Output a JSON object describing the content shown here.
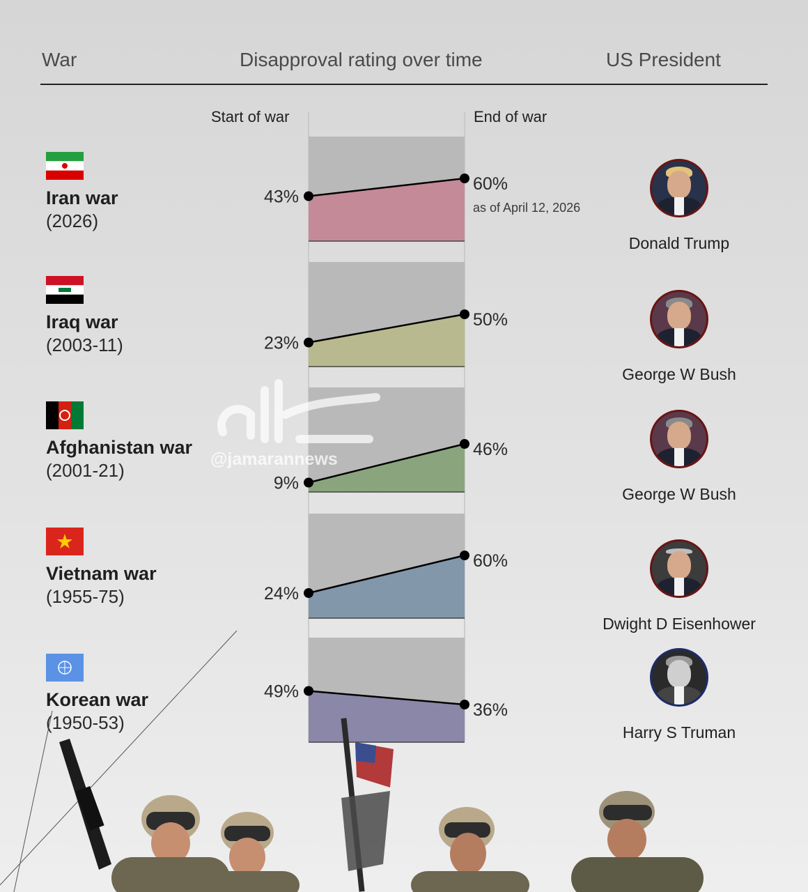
{
  "header": {
    "war": "War",
    "rating": "Disapproval rating over time",
    "president": "US President"
  },
  "subheaders": {
    "start": "Start of war",
    "end": "End of war"
  },
  "watermark": "@jamarannews",
  "colors": {
    "iran": "#c48a98",
    "iraq": "#b9b98f",
    "afghanistan": "#8aa57e",
    "vietnam": "#8397ab",
    "korean": "#8b87a8",
    "panel_bg": "#b9b9b9"
  },
  "chart_data": {
    "type": "line",
    "ylim": [
      0,
      100
    ],
    "x": [
      "Start of war",
      "End of war"
    ],
    "series": [
      {
        "name": "Iran war (2026)",
        "values": [
          43,
          60
        ],
        "start_label": "43%",
        "end_label": "60%",
        "note": "as of April 12, 2026"
      },
      {
        "name": "Iraq war (2003-11)",
        "values": [
          23,
          50
        ],
        "start_label": "23%",
        "end_label": "50%"
      },
      {
        "name": "Afghanistan war (2001-21)",
        "values": [
          9,
          46
        ],
        "start_label": "9%",
        "end_label": "46%"
      },
      {
        "name": "Vietnam war (1955-75)",
        "values": [
          24,
          60
        ],
        "start_label": "24%",
        "end_label": "60%"
      },
      {
        "name": "Korean war (1950-53)",
        "values": [
          49,
          36
        ],
        "start_label": "49%",
        "end_label": "36%"
      }
    ]
  },
  "wars": [
    {
      "name": "Iran war",
      "years": "(2026)",
      "flag": "iran-flag",
      "president": "Donald Trump"
    },
    {
      "name": "Iraq war",
      "years": "(2003-11)",
      "flag": "iraq-flag",
      "president": "George W Bush"
    },
    {
      "name": "Afghanistan war",
      "years": "(2001-21)",
      "flag": "afghanistan-flag",
      "president": "George W Bush"
    },
    {
      "name": "Vietnam war",
      "years": "(1955-75)",
      "flag": "vietnam-flag",
      "president": "Dwight D Eisenhower"
    },
    {
      "name": "Korean war",
      "years": "(1950-53)",
      "flag": "un-flag",
      "president": "Harry S Truman"
    }
  ]
}
